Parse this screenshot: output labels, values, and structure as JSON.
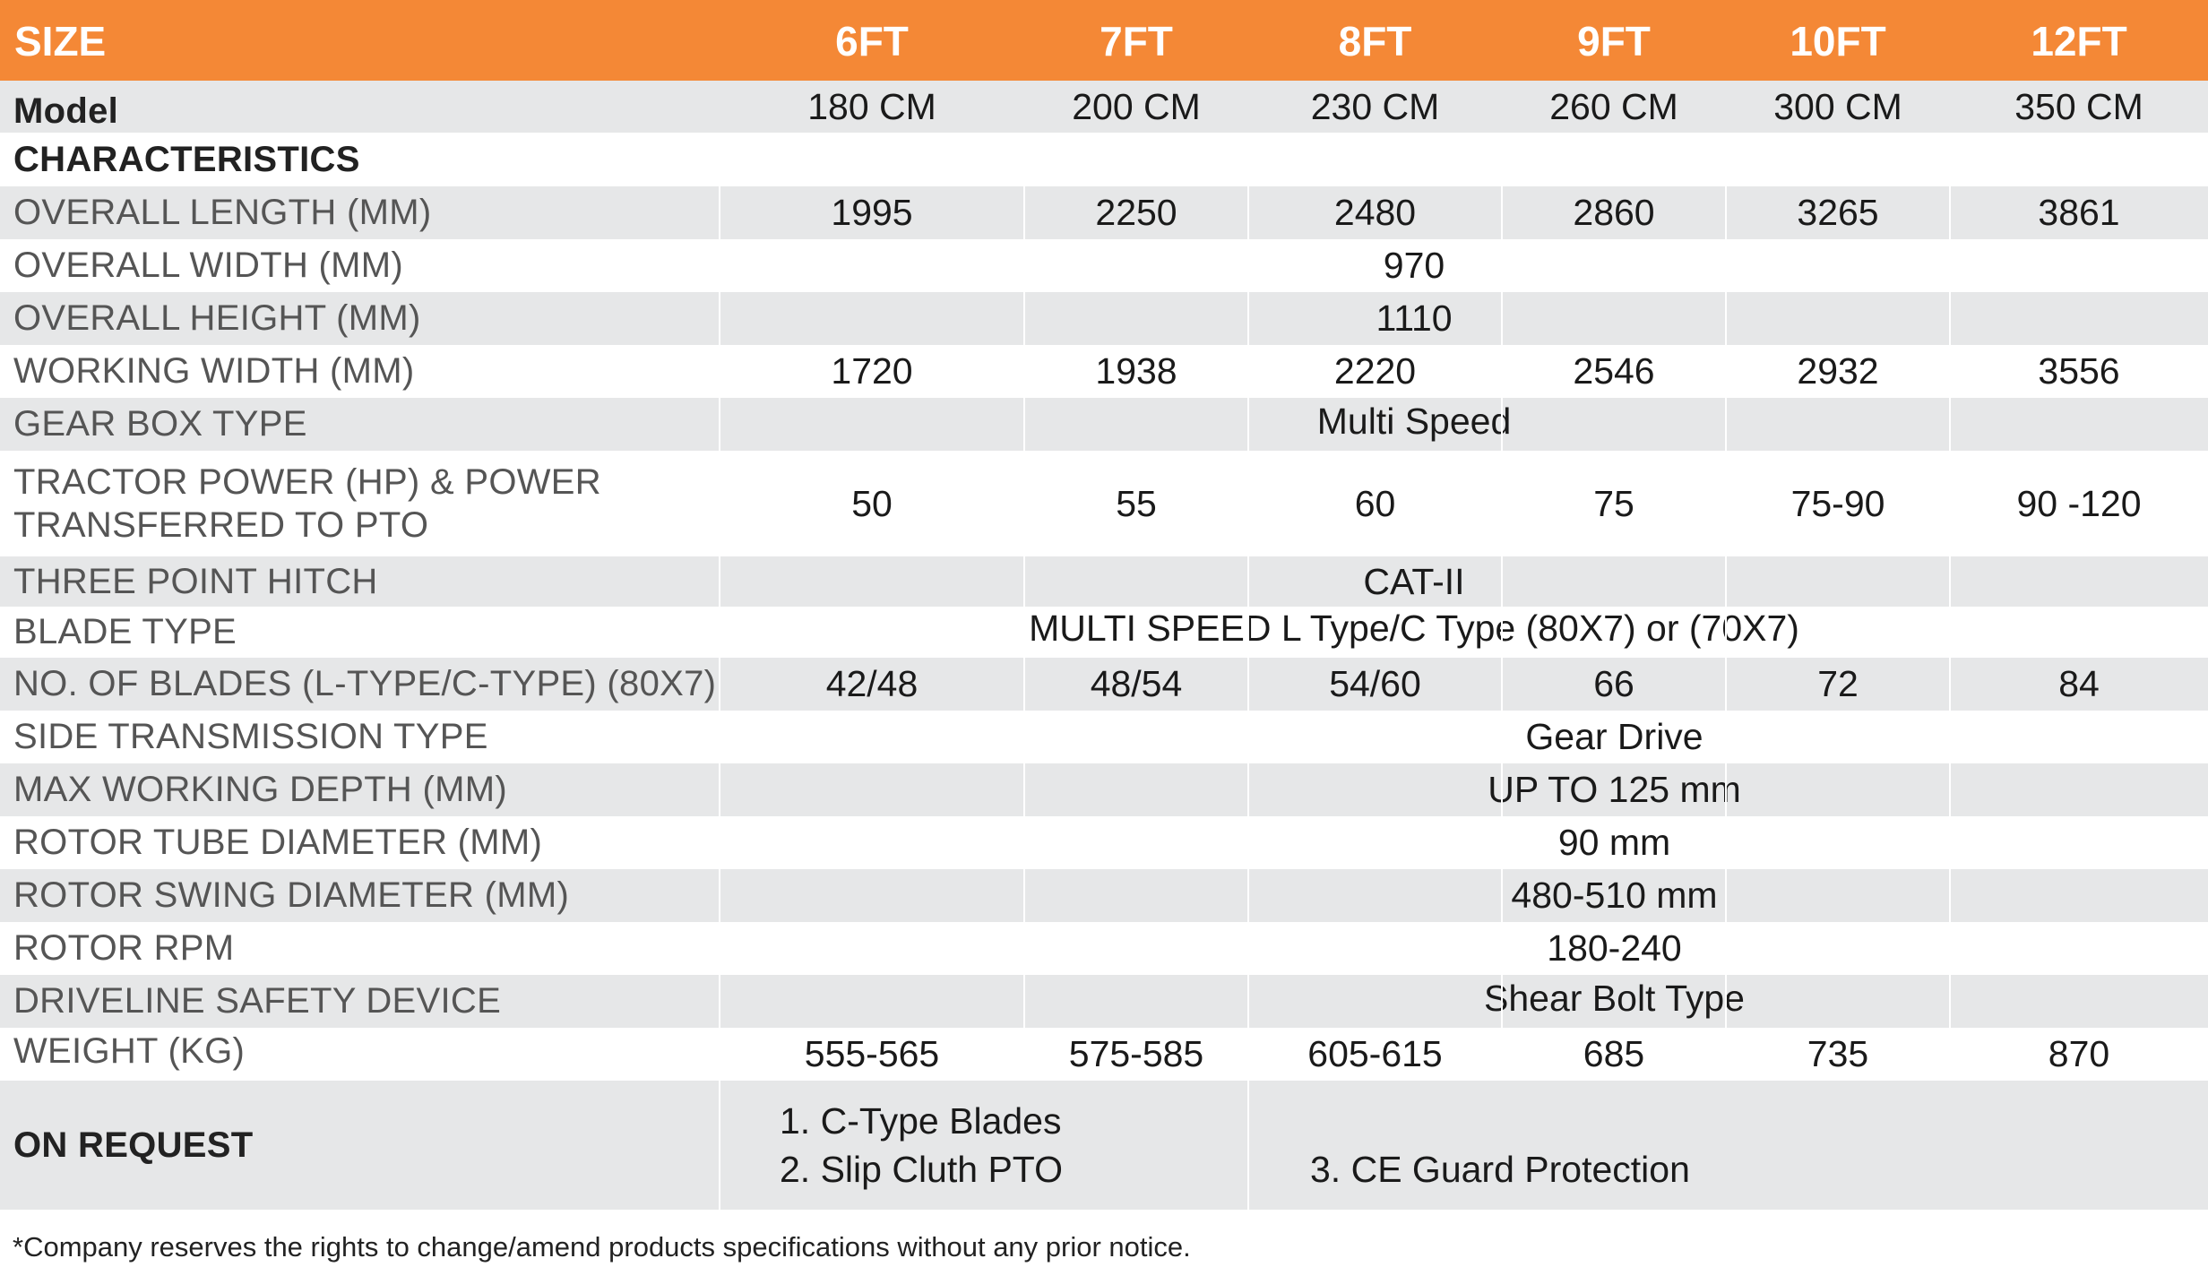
{
  "header": {
    "label": "SIZE",
    "sizes": [
      "6FT",
      "7FT",
      "8FT",
      "9FT",
      "10FT",
      "12FT"
    ]
  },
  "model": {
    "label": "Model",
    "values": [
      "180 CM",
      "200 CM",
      "230 CM",
      "260 CM",
      "300 CM",
      "350 CM"
    ]
  },
  "characteristics_label": "CHARACTERISTICS",
  "rows": {
    "overall_length": {
      "label": "OVERALL LENGTH (MM)",
      "values": [
        "1995",
        "2250",
        "2480",
        "2860",
        "3265",
        "3861"
      ]
    },
    "overall_width": {
      "label": "OVERALL WIDTH (MM)",
      "value": "970"
    },
    "overall_height": {
      "label": "OVERALL HEIGHT (MM)",
      "value": "1110"
    },
    "working_width": {
      "label": "WORKING WIDTH (MM)",
      "values": [
        "1720",
        "1938",
        "2220",
        "2546",
        "2932",
        "3556"
      ]
    },
    "gear_box": {
      "label": "GEAR BOX TYPE",
      "value": "Multi Speed"
    },
    "tractor_power": {
      "label_line1": "TRACTOR POWER (HP) & POWER",
      "label_line2": "TRANSFERRED TO PTO",
      "values": [
        "50",
        "55",
        "60",
        "75",
        "75-90",
        "90 -120"
      ]
    },
    "hitch": {
      "label": "THREE POINT HITCH",
      "value": "CAT-II"
    },
    "blade_type": {
      "label": "BLADE TYPE",
      "value": "MULTI SPEED L Type/C Type (80X7) or (70X7)"
    },
    "blades": {
      "label": "NO. OF BLADES (L-TYPE/C-TYPE) (80X7)",
      "values": [
        "42/48",
        "48/54",
        "54/60",
        "66",
        "72",
        "84"
      ]
    },
    "side_transmission": {
      "label": "SIDE TRANSMISSION TYPE",
      "value": "Gear Drive"
    },
    "max_depth": {
      "label": "MAX WORKING DEPTH (MM)",
      "value": "UP TO 125 mm"
    },
    "rotor_tube": {
      "label": "ROTOR TUBE DIAMETER (MM)",
      "value": "90 mm"
    },
    "rotor_swing": {
      "label": "ROTOR SWING DIAMETER (MM)",
      "value": "480-510 mm"
    },
    "rotor_rpm": {
      "label": "ROTOR RPM",
      "value": "180-240"
    },
    "safety_device": {
      "label": "DRIVELINE SAFETY DEVICE",
      "value": "Shear Bolt Type"
    },
    "weight": {
      "label": "WEIGHT (KG)",
      "values": [
        "555-565",
        "575-585",
        "605-615",
        "685",
        "735",
        "870"
      ]
    }
  },
  "on_request": {
    "label": "ON REQUEST",
    "item1": "1. C-Type Blades",
    "item2": "2. Slip Cluth PTO",
    "item3": "3. CE Guard Protection"
  },
  "footnote": "*Company reserves the rights to change/amend products specifications without any prior notice.",
  "colors": {
    "header_bg": "#f48836",
    "row_gray": "#e6e7e8",
    "text": "#1a1a1a",
    "label_text": "#555555"
  }
}
